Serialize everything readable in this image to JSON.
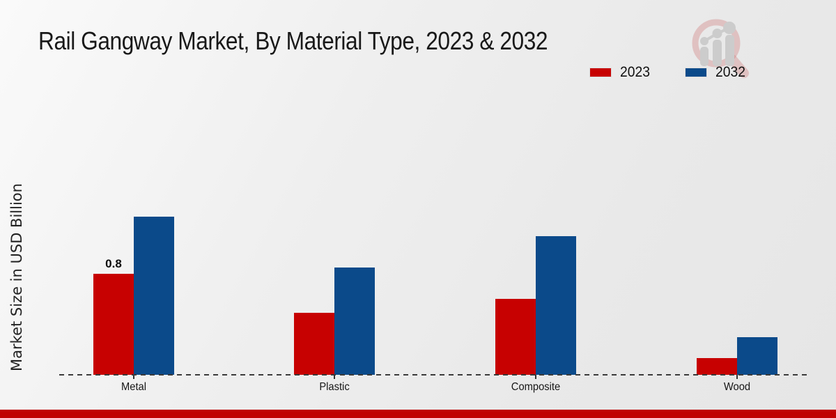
{
  "header": {
    "title": "Rail Gangway Market, By Material Type, 2023 & 2032"
  },
  "axes": {
    "ylabel": "Market Size in USD Billion"
  },
  "legend": [
    {
      "label": "2023",
      "color": "#c70101"
    },
    {
      "label": "2032",
      "color": "#0b4a8a"
    }
  ],
  "chart_data": {
    "type": "bar",
    "title": "Rail Gangway Market, By Material Type, 2023 & 2032",
    "categories": [
      "Metal",
      "Plastic",
      "Composite",
      "Wood"
    ],
    "series": [
      {
        "name": "2023",
        "color": "#c70101",
        "values": [
          0.8,
          0.49,
          0.6,
          0.13
        ],
        "labels": [
          "0.8",
          "",
          "",
          ""
        ]
      },
      {
        "name": "2032",
        "color": "#0b4a8a",
        "values": [
          1.25,
          0.85,
          1.1,
          0.3
        ],
        "labels": [
          "",
          "",
          "",
          ""
        ]
      }
    ],
    "xlabel": "",
    "ylabel": "Market Size in USD Billion",
    "ylim": [
      0,
      1.4
    ],
    "grid": false,
    "legend_position": "top-right",
    "baseline_style": "dashed",
    "annotations": [
      {
        "series": "2023",
        "category": "Metal",
        "text": "0.8"
      }
    ]
  },
  "watermark": {
    "icon": "magnifier-bar-chart-logo"
  },
  "footer": {
    "accent_color": "#c00202"
  }
}
